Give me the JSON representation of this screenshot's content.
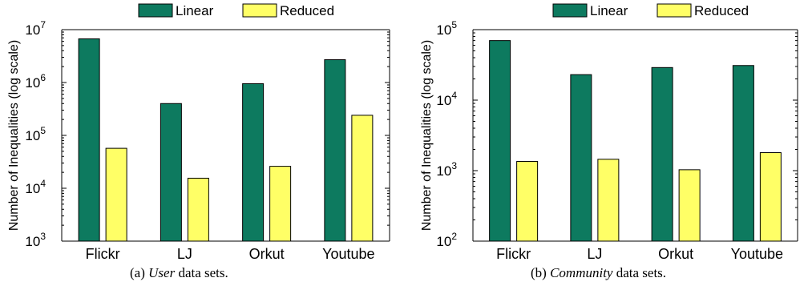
{
  "chart_data": [
    {
      "type": "bar",
      "caption": {
        "prefix": "(a) ",
        "emph": "User",
        "suffix": " data sets."
      },
      "ylabel": "Number of Inequalities (log scale)",
      "yscale": "log",
      "ylim": [
        1000,
        10000000
      ],
      "yticks": [
        {
          "base": "10",
          "exp": "3"
        },
        {
          "base": "10",
          "exp": "4"
        },
        {
          "base": "10",
          "exp": "5"
        },
        {
          "base": "10",
          "exp": "6"
        },
        {
          "base": "10",
          "exp": "7"
        }
      ],
      "categories": [
        "Flickr",
        "LJ",
        "Orkut",
        "Youtube"
      ],
      "series": [
        {
          "name": "Linear",
          "color": "#0d7a5f",
          "values": [
            6700000,
            400000,
            950000,
            2700000
          ]
        },
        {
          "name": "Reduced",
          "color": "#ffff66",
          "values": [
            57000,
            15500,
            26000,
            240000
          ]
        }
      ],
      "legend": "top",
      "grid": false
    },
    {
      "type": "bar",
      "caption": {
        "prefix": "(b) ",
        "emph": "Community",
        "suffix": " data sets."
      },
      "ylabel": "Number of Inequalities (log scale)",
      "yscale": "log",
      "ylim": [
        100,
        100000
      ],
      "yticks": [
        {
          "base": "10",
          "exp": "2"
        },
        {
          "base": "10",
          "exp": "3"
        },
        {
          "base": "10",
          "exp": "4"
        },
        {
          "base": "10",
          "exp": "5"
        }
      ],
      "categories": [
        "Flickr",
        "LJ",
        "Orkut",
        "Youtube"
      ],
      "series": [
        {
          "name": "Linear",
          "color": "#0d7a5f",
          "values": [
            70000,
            23000,
            29000,
            31000
          ]
        },
        {
          "name": "Reduced",
          "color": "#ffff66",
          "values": [
            1350,
            1450,
            1030,
            1800
          ]
        }
      ],
      "legend": "top",
      "grid": false
    }
  ]
}
